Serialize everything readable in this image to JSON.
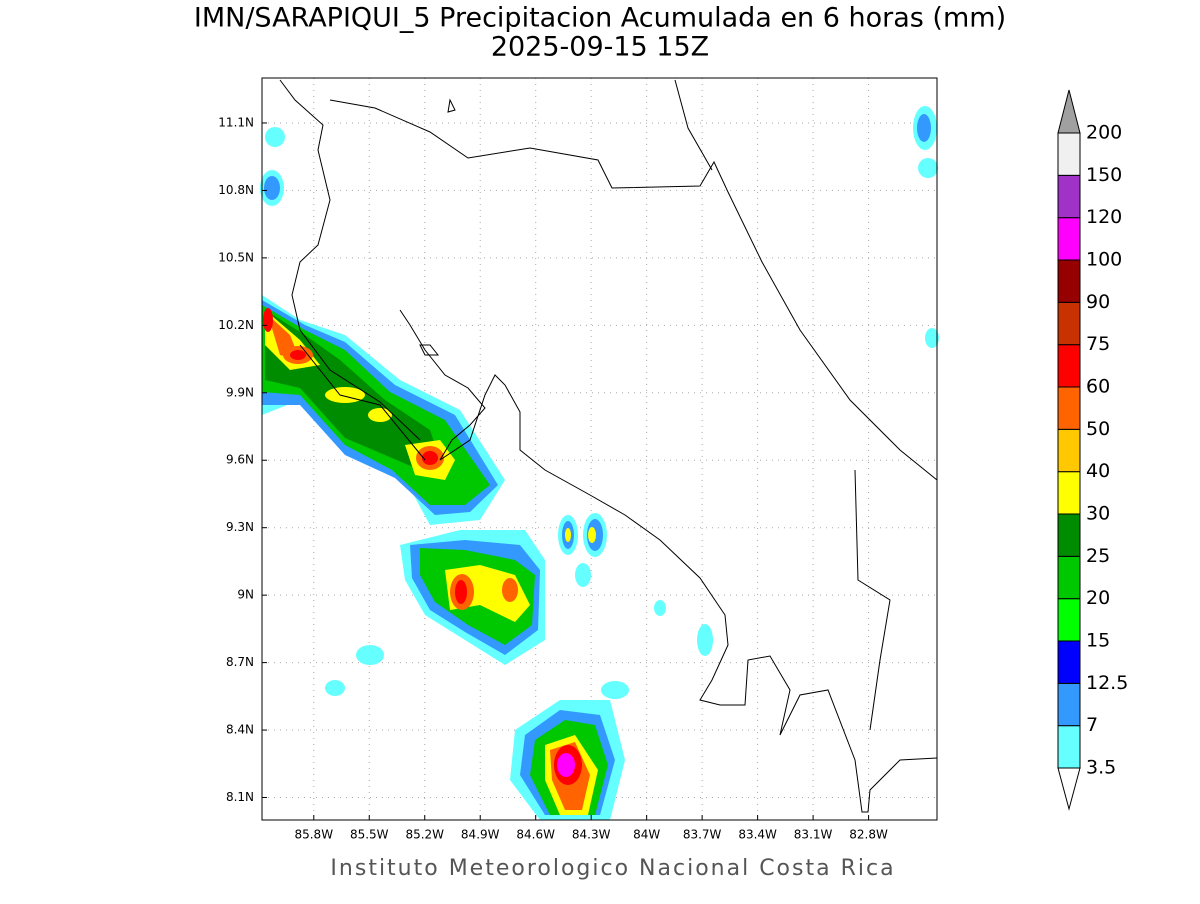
{
  "map": {
    "title": "IMN/SARAPIQUI_5 Precipitacion Acumulada en 6 horas (mm)",
    "subtitle": "2025-09-15 15Z",
    "credit": "Instituto Meteorologico Nacional Costa Rica",
    "xlim": [
      -86.08,
      -82.43
    ],
    "ylim": [
      8.0,
      11.3
    ],
    "xticks": [
      {
        "value": -85.8,
        "label": "85.8W"
      },
      {
        "value": -85.5,
        "label": "85.5W"
      },
      {
        "value": -85.2,
        "label": "85.2W"
      },
      {
        "value": -84.9,
        "label": "84.9W"
      },
      {
        "value": -84.6,
        "label": "84.6W"
      },
      {
        "value": -84.3,
        "label": "84.3W"
      },
      {
        "value": -84.0,
        "label": "84W"
      },
      {
        "value": -83.7,
        "label": "83.7W"
      },
      {
        "value": -83.4,
        "label": "83.4W"
      },
      {
        "value": -83.1,
        "label": "83.1W"
      },
      {
        "value": -82.8,
        "label": "82.8W"
      }
    ],
    "yticks": [
      {
        "value": 8.1,
        "label": "8.1N"
      },
      {
        "value": 8.4,
        "label": "8.4N"
      },
      {
        "value": 8.7,
        "label": "8.7N"
      },
      {
        "value": 9.0,
        "label": "9N"
      },
      {
        "value": 9.3,
        "label": "9.3N"
      },
      {
        "value": 9.6,
        "label": "9.6N"
      },
      {
        "value": 9.9,
        "label": "9.9N"
      },
      {
        "value": 10.2,
        "label": "10.2N"
      },
      {
        "value": 10.5,
        "label": "10.5N"
      },
      {
        "value": 10.8,
        "label": "10.8N"
      },
      {
        "value": 11.1,
        "label": "11.1N"
      }
    ],
    "grid": true,
    "colorbar": {
      "levels": [
        3.5,
        7,
        12.5,
        15,
        20,
        25,
        30,
        40,
        50,
        60,
        75,
        90,
        100,
        120,
        150,
        200
      ],
      "colors": [
        "#66ffff",
        "#3399ff",
        "#0000ff",
        "#00ff00",
        "#00c800",
        "#008c00",
        "#ffff00",
        "#ffc800",
        "#ff6400",
        "#ff0000",
        "#c83200",
        "#960000",
        "#ff00ff",
        "#a032c8",
        "#f0f0f0"
      ],
      "under_color": "#ffffff",
      "over_color": "#a0a0a0"
    }
  }
}
